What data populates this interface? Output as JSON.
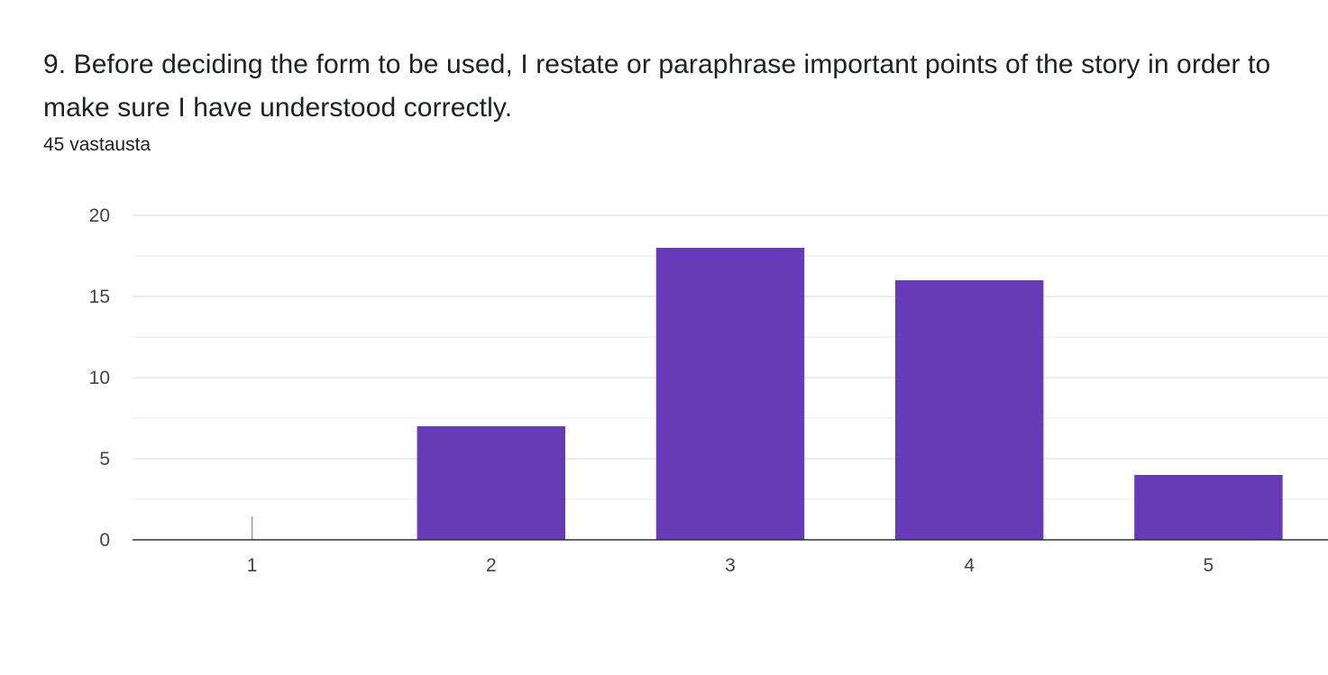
{
  "question": {
    "title": "9.  Before deciding the form to be used, I restate or paraphrase important points of the story in order to make sure I have understood correctly.",
    "response_count": "45 vastausta"
  },
  "colors": {
    "bar": "#673ab7",
    "grid": "#ebebeb",
    "baseline": "#333333",
    "text": "#444444"
  },
  "chart_data": {
    "type": "bar",
    "categories": [
      "1",
      "2",
      "3",
      "4",
      "5"
    ],
    "values": [
      0,
      7,
      18,
      16,
      4
    ],
    "ylim": [
      0,
      20
    ],
    "yticks": [
      0,
      5,
      10,
      15,
      20
    ],
    "grid": true,
    "legend": "none"
  }
}
